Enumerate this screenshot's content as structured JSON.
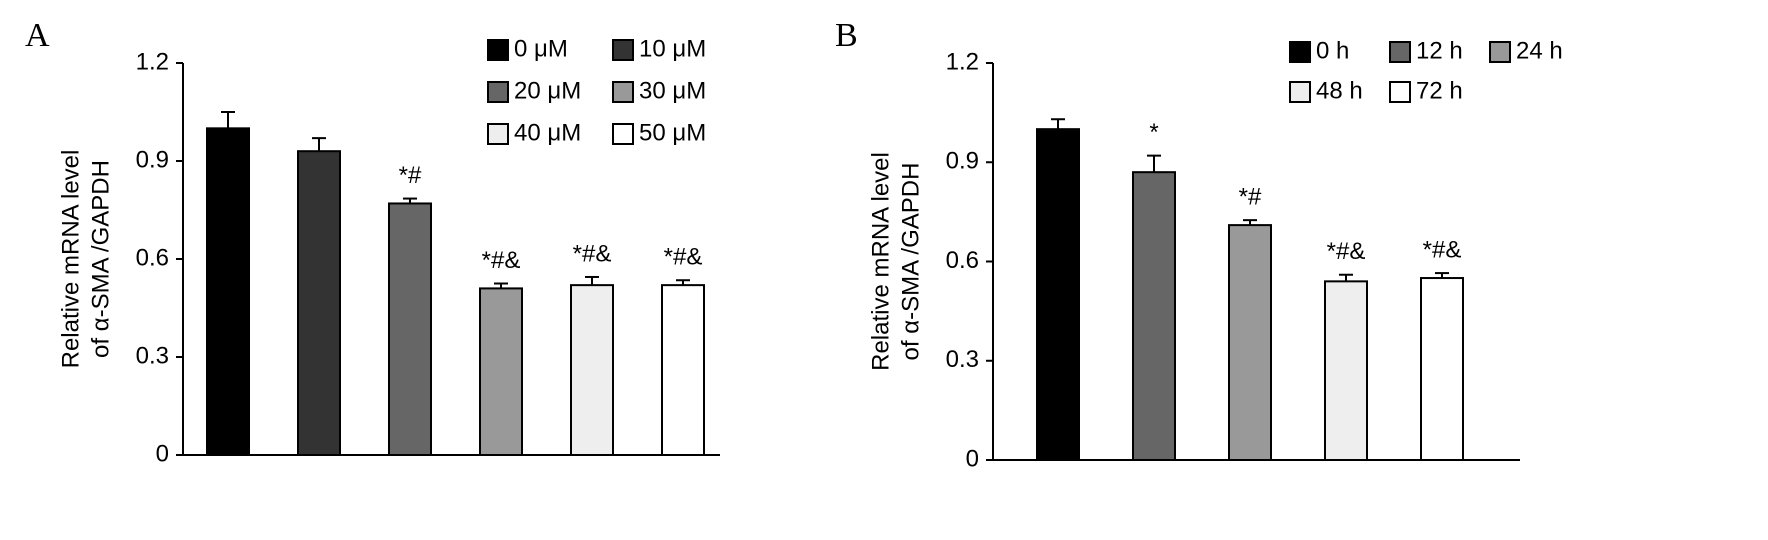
{
  "chart_data": [
    {
      "type": "bar",
      "panel": "A",
      "y_label": [
        "Relative mRNA level",
        "of α-SMA /GAPDH"
      ],
      "categories": [
        "0 μM",
        "10 μM",
        "20 μM",
        "30 μM",
        "40 μM",
        "50 μM"
      ],
      "values": [
        1.0,
        0.93,
        0.77,
        0.51,
        0.52,
        0.52
      ],
      "errors": [
        0.05,
        0.04,
        0.015,
        0.015,
        0.025,
        0.015
      ],
      "annotations": [
        null,
        null,
        "*#",
        "*#&",
        "*#&",
        "*#&"
      ],
      "colors": [
        "#000000",
        "#333333",
        "#666666",
        "#999999",
        "#eeeeee",
        "#ffffff"
      ],
      "ylim": [
        0,
        1.2
      ],
      "yticks": [
        0,
        0.3,
        0.6,
        0.9,
        1.2
      ]
    },
    {
      "type": "bar",
      "panel": "B",
      "y_label": [
        "Relative mRNA level",
        "of α-SMA /GAPDH"
      ],
      "categories": [
        "0 h",
        "12 h",
        "24 h",
        "48 h",
        "72 h"
      ],
      "values": [
        1.0,
        0.87,
        0.71,
        0.54,
        0.55
      ],
      "errors": [
        0.03,
        0.05,
        0.015,
        0.02,
        0.015
      ],
      "annotations": [
        null,
        "*",
        "*#",
        "*#&",
        "*#&"
      ],
      "colors": [
        "#000000",
        "#666666",
        "#999999",
        "#eeeeee",
        "#ffffff"
      ],
      "ylim": [
        0,
        1.2
      ],
      "yticks": [
        0,
        0.3,
        0.6,
        0.9,
        1.2
      ]
    }
  ]
}
